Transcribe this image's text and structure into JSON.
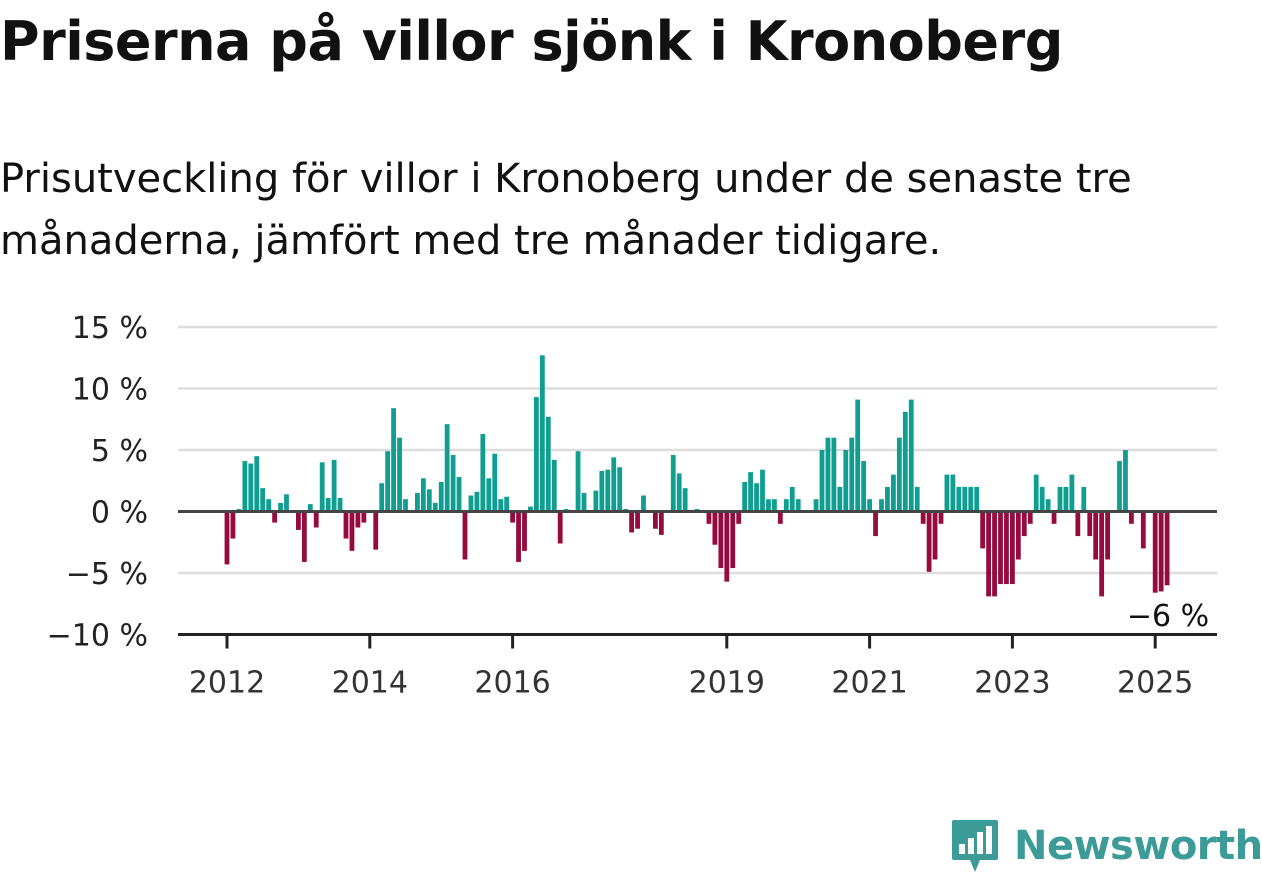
{
  "title": "Priserna på villor sjönk i Kronoberg",
  "subtitle": "Prisutveckling för villor i Kronoberg under de senaste tre månaderna, jämfört med tre månader tidigare.",
  "brand": {
    "name": "Newsworthy",
    "icon": "newsworthy-logo-icon"
  },
  "colors": {
    "positive": "#0f9e8f",
    "negative": "#960a3d",
    "grid": "#dddddd",
    "axis": "#444444",
    "brand": "#3d9b97"
  },
  "chart_data": {
    "type": "bar",
    "x_unit": "month",
    "y_unit": "%",
    "ylim": [
      -10,
      15
    ],
    "yticks": [
      15,
      10,
      5,
      0,
      -5,
      -10
    ],
    "ytick_labels": [
      "15 %",
      "10 %",
      "5 %",
      "0 %",
      "−5 %",
      "−10 %"
    ],
    "xticks": [
      {
        "date": "2012-01",
        "label": "2012"
      },
      {
        "date": "2014-01",
        "label": "2014"
      },
      {
        "date": "2016-01",
        "label": "2016"
      },
      {
        "date": "2019-01",
        "label": "2019"
      },
      {
        "date": "2021-01",
        "label": "2021"
      },
      {
        "date": "2023-01",
        "label": "2023"
      },
      {
        "date": "2025-01",
        "label": "2025"
      }
    ],
    "grid": true,
    "end_label": "−6 %",
    "series": [
      {
        "start": "2012-01",
        "values": [
          -4.3,
          -2.2,
          0.2,
          4.1,
          3.9,
          4.5,
          1.9,
          1.0,
          -0.9,
          0.7,
          1.4,
          0,
          -1.5,
          -4.1,
          0.6,
          -1.3,
          4.0,
          1.1,
          4.2,
          1.1,
          -2.2,
          -3.2,
          -1.3,
          -0.9,
          0,
          -3.1,
          2.3,
          4.9,
          8.4,
          6.0,
          1.0,
          0,
          1.5,
          2.7,
          1.8,
          0.7,
          2.4,
          7.1,
          4.6,
          2.8,
          -3.9,
          1.3,
          1.6,
          6.3,
          2.7,
          4.7,
          1.0,
          1.2,
          -0.9,
          -4.1,
          -3.2,
          0.4,
          9.3,
          12.7,
          7.7,
          4.2,
          -2.6,
          0.2,
          0,
          4.9,
          1.5,
          0,
          1.7,
          3.3,
          3.4,
          4.4,
          3.6,
          0.2,
          -1.7,
          -1.4,
          1.3,
          0,
          -1.4,
          -1.9,
          0,
          4.6,
          3.1,
          1.9,
          0,
          0.2,
          0,
          -1.0,
          -2.7,
          -4.6,
          -5.7,
          -4.6,
          -1.0,
          2.4,
          3.2,
          2.3,
          3.4,
          1.0,
          1.0,
          -1.0,
          1.0,
          2.0,
          1.0,
          0,
          0,
          1.0,
          5.0,
          6.0,
          6.0,
          2.0,
          5.0,
          6.0,
          9.1,
          4.1,
          1.0,
          -2.0,
          1.0,
          2.0,
          3.0,
          6.0,
          8.1,
          9.1,
          2.0,
          -1.0,
          -4.9,
          -3.9,
          -1.0,
          3.0,
          3.0,
          2.0,
          2.0,
          2.0,
          2.0,
          -3.0,
          -6.9,
          -6.9,
          -5.9,
          -5.9,
          -5.9,
          -3.9,
          -2.0,
          -1.0,
          3.0,
          2.0,
          1.0,
          -1.0,
          2.0,
          2.0,
          3.0,
          -2.0,
          2.0,
          -2.0,
          -3.9,
          -6.9,
          -3.9,
          0,
          4.1,
          5.0,
          -1.0,
          0,
          -3.0,
          0,
          -6.6,
          -6.5,
          -6.0
        ]
      }
    ]
  }
}
